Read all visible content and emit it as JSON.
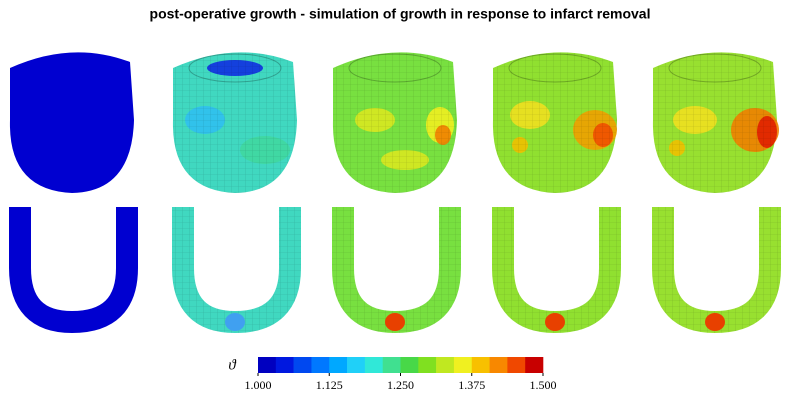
{
  "figure": {
    "title": "post-operative growth - simulation of growth in response to infarct removal",
    "colorbar": {
      "label": "ϑ",
      "range": [
        1,
        1.5
      ],
      "ticks": [
        {
          "value": 1,
          "label": "1.000"
        },
        {
          "value": 1.125,
          "label": "1.125"
        },
        {
          "value": 1.25,
          "label": "1.250"
        },
        {
          "value": 1.375,
          "label": "1.375"
        },
        {
          "value": 1.5,
          "label": "1.500"
        }
      ],
      "colors": [
        "#0000c0",
        "#0018e0",
        "#0048f0",
        "#0078ff",
        "#00a8ff",
        "#20d0f8",
        "#30e8d8",
        "#40e090",
        "#48d848",
        "#80e020",
        "#c0e820",
        "#f0f020",
        "#f8c000",
        "#f88800",
        "#f04800",
        "#c80000"
      ]
    }
  }
}
